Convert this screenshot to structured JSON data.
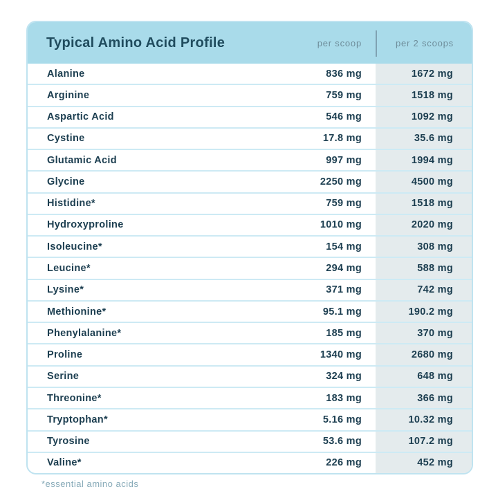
{
  "chart_data": {
    "type": "table",
    "title": "Typical Amino Acid Profile",
    "columns": [
      "per scoop",
      "per 2 scoops"
    ],
    "footnote": "*essential amino acids",
    "rows": [
      {
        "name": "Alanine",
        "per_scoop": "836 mg",
        "per_2_scoops": "1672 mg"
      },
      {
        "name": "Arginine",
        "per_scoop": "759 mg",
        "per_2_scoops": "1518 mg"
      },
      {
        "name": "Aspartic Acid",
        "per_scoop": "546 mg",
        "per_2_scoops": "1092 mg"
      },
      {
        "name": "Cystine",
        "per_scoop": "17.8 mg",
        "per_2_scoops": "35.6 mg"
      },
      {
        "name": "Glutamic Acid",
        "per_scoop": "997 mg",
        "per_2_scoops": "1994 mg"
      },
      {
        "name": "Glycine",
        "per_scoop": "2250 mg",
        "per_2_scoops": "4500 mg"
      },
      {
        "name": "Histidine*",
        "per_scoop": "759 mg",
        "per_2_scoops": "1518 mg"
      },
      {
        "name": "Hydroxyproline",
        "per_scoop": "1010 mg",
        "per_2_scoops": "2020 mg"
      },
      {
        "name": "Isoleucine*",
        "per_scoop": "154 mg",
        "per_2_scoops": "308 mg"
      },
      {
        "name": "Leucine*",
        "per_scoop": "294 mg",
        "per_2_scoops": "588 mg"
      },
      {
        "name": "Lysine*",
        "per_scoop": "371 mg",
        "per_2_scoops": "742 mg"
      },
      {
        "name": "Methionine*",
        "per_scoop": "95.1 mg",
        "per_2_scoops": "190.2 mg"
      },
      {
        "name": "Phenylalanine*",
        "per_scoop": "185 mg",
        "per_2_scoops": "370 mg"
      },
      {
        "name": "Proline",
        "per_scoop": "1340 mg",
        "per_2_scoops": "2680 mg"
      },
      {
        "name": "Serine",
        "per_scoop": "324 mg",
        "per_2_scoops": "648 mg"
      },
      {
        "name": "Threonine*",
        "per_scoop": "183 mg",
        "per_2_scoops": "366 mg"
      },
      {
        "name": "Tryptophan*",
        "per_scoop": "5.16 mg",
        "per_2_scoops": "10.32 mg"
      },
      {
        "name": "Tyrosine",
        "per_scoop": "53.6 mg",
        "per_2_scoops": "107.2 mg"
      },
      {
        "name": "Valine*",
        "per_scoop": "226 mg",
        "per_2_scoops": "452 mg"
      }
    ]
  },
  "colors": {
    "header_bg": "#a9dbea",
    "title_text": "#204c5e",
    "column_label_text": "#6e8d9a",
    "header_divider": "#7fa2b2",
    "row_text": "#1c3e50",
    "row_separator": "#cdeaf4",
    "second_column_bg": "#e4ebed",
    "card_border": "#bfe3f0",
    "footnote_text": "#87aab8"
  }
}
